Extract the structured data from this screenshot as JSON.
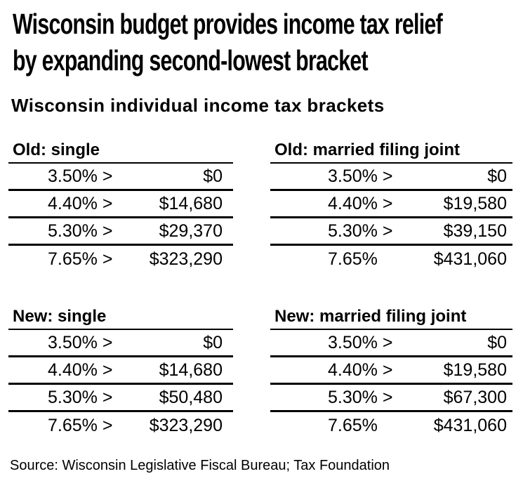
{
  "page": {
    "title_line1": "Wisconsin budget provides income tax relief",
    "title_line2": "by expanding second-lowest bracket",
    "subtitle": "Wisconsin individual income tax brackets",
    "source": "Source: Wisconsin Legislative Fiscal Bureau; Tax Foundation",
    "text_color": "#000000",
    "background_color": "#ffffff",
    "rule_color": "#000000"
  },
  "chart_data": {
    "type": "table",
    "title": "Wisconsin budget provides income tax relief by expanding second-lowest bracket",
    "subtitle": "Wisconsin individual income tax brackets",
    "source": "Source: Wisconsin Legislative Fiscal Bureau; Tax Foundation",
    "layout": "2x2 grid of bracket tables, horizontal rules only, black on white",
    "tables": [
      {
        "title": "Old: single",
        "columns": [
          "rate",
          "threshold"
        ],
        "rows": [
          [
            "3.50% >",
            "$0"
          ],
          [
            "4.40% >",
            "$14,680"
          ],
          [
            "5.30% >",
            "$29,370"
          ],
          [
            "7.65% >",
            "$323,290"
          ]
        ]
      },
      {
        "title": "Old: married filing joint",
        "columns": [
          "rate",
          "threshold"
        ],
        "rows": [
          [
            "3.50% >",
            "$0"
          ],
          [
            "4.40% >",
            "$19,580"
          ],
          [
            "5.30% >",
            "$39,150"
          ],
          [
            "7.65%",
            "$431,060"
          ]
        ]
      },
      {
        "title": "New: single",
        "columns": [
          "rate",
          "threshold"
        ],
        "rows": [
          [
            "3.50% >",
            "$0"
          ],
          [
            "4.40% >",
            "$14,680"
          ],
          [
            "5.30% >",
            "$50,480"
          ],
          [
            "7.65% >",
            "$323,290"
          ]
        ]
      },
      {
        "title": "New: married filing joint",
        "columns": [
          "rate",
          "threshold"
        ],
        "rows": [
          [
            "3.50% >",
            "$0"
          ],
          [
            "4.40% >",
            "$19,580"
          ],
          [
            "5.30% >",
            "$67,300"
          ],
          [
            "7.65%",
            "$431,060"
          ]
        ]
      }
    ]
  }
}
